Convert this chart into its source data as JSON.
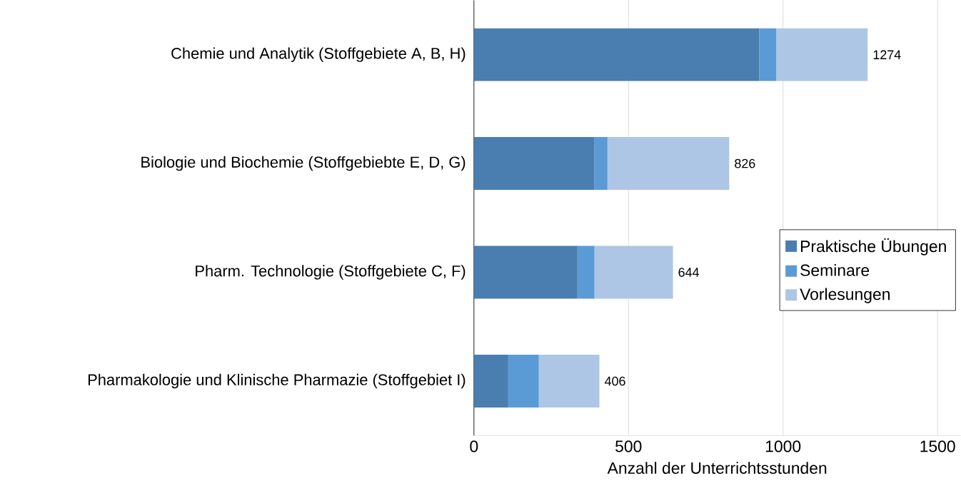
{
  "chart_data": {
    "type": "bar",
    "orientation": "horizontal",
    "stacked": true,
    "xlabel": "Anzahl der Unterrichtsstunden",
    "categories": [
      "Chemie und Analytik (Stoffgebiete A, B, H)",
      "Biologie und Biochemie (Stoffgebiebte E, D, G)",
      "Pharm. Technologie (Stoffgebiete C, F)",
      "Pharmakologie und Klinische Pharmazie (Stoffgebiet I)"
    ],
    "series": [
      {
        "name": "Praktische Übungen",
        "color": "#4a7eb0",
        "values": [
          923,
          390,
          335,
          111
        ]
      },
      {
        "name": "Seminare",
        "color": "#5b9bd5",
        "values": [
          55,
          42,
          55,
          99
        ]
      },
      {
        "name": "Vorlesungen",
        "color": "#adc6e5",
        "values": [
          296,
          394,
          254,
          196
        ]
      }
    ],
    "totals": [
      "1274",
      "826",
      "644",
      "406"
    ],
    "xlim": [
      0,
      1575
    ],
    "xticks": [
      0,
      500,
      1000,
      1500
    ],
    "grid": "x",
    "legend": "right"
  }
}
